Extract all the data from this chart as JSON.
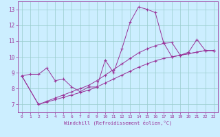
{
  "xlabel": "Windchill (Refroidissement éolien,°C)",
  "background_color": "#cceeff",
  "grid_color": "#99cccc",
  "line_color": "#993399",
  "xlim": [
    -0.5,
    23.5
  ],
  "ylim": [
    6.5,
    13.5
  ],
  "yticks": [
    7,
    8,
    9,
    10,
    11,
    12,
    13
  ],
  "xticks": [
    0,
    1,
    2,
    3,
    4,
    5,
    6,
    7,
    8,
    9,
    10,
    11,
    12,
    13,
    14,
    15,
    16,
    17,
    18,
    19,
    20,
    21,
    22,
    23
  ],
  "line1_x": [
    0,
    1,
    2,
    3,
    4,
    5,
    6,
    7,
    8,
    9,
    10,
    11,
    12,
    13,
    14,
    15,
    16,
    17,
    18,
    19,
    20,
    21,
    22,
    23
  ],
  "line1_y": [
    8.8,
    8.9,
    8.9,
    9.3,
    8.5,
    8.6,
    8.1,
    7.8,
    8.1,
    8.1,
    9.8,
    9.0,
    10.5,
    12.2,
    13.15,
    13.0,
    12.8,
    10.9,
    10.0,
    10.1,
    10.3,
    11.1,
    10.4,
    10.4
  ],
  "line2_x": [
    0,
    2,
    3,
    4,
    5,
    6,
    7,
    8,
    9,
    10,
    11,
    12,
    13,
    14,
    15,
    16,
    17,
    18,
    19,
    20,
    21,
    22,
    23
  ],
  "line2_y": [
    8.8,
    7.0,
    7.15,
    7.3,
    7.45,
    7.6,
    7.75,
    7.9,
    8.1,
    8.35,
    8.6,
    8.85,
    9.1,
    9.35,
    9.55,
    9.75,
    9.9,
    10.0,
    10.1,
    10.2,
    10.3,
    10.4,
    10.4
  ],
  "line3_x": [
    0,
    2,
    3,
    4,
    5,
    6,
    7,
    8,
    9,
    10,
    11,
    12,
    13,
    14,
    15,
    16,
    17,
    18,
    19,
    20,
    21,
    22,
    23
  ],
  "line3_y": [
    8.8,
    7.0,
    7.2,
    7.4,
    7.6,
    7.8,
    8.0,
    8.2,
    8.5,
    8.85,
    9.2,
    9.55,
    9.9,
    10.25,
    10.5,
    10.7,
    10.85,
    10.9,
    10.1,
    10.2,
    10.3,
    10.4,
    10.4
  ]
}
